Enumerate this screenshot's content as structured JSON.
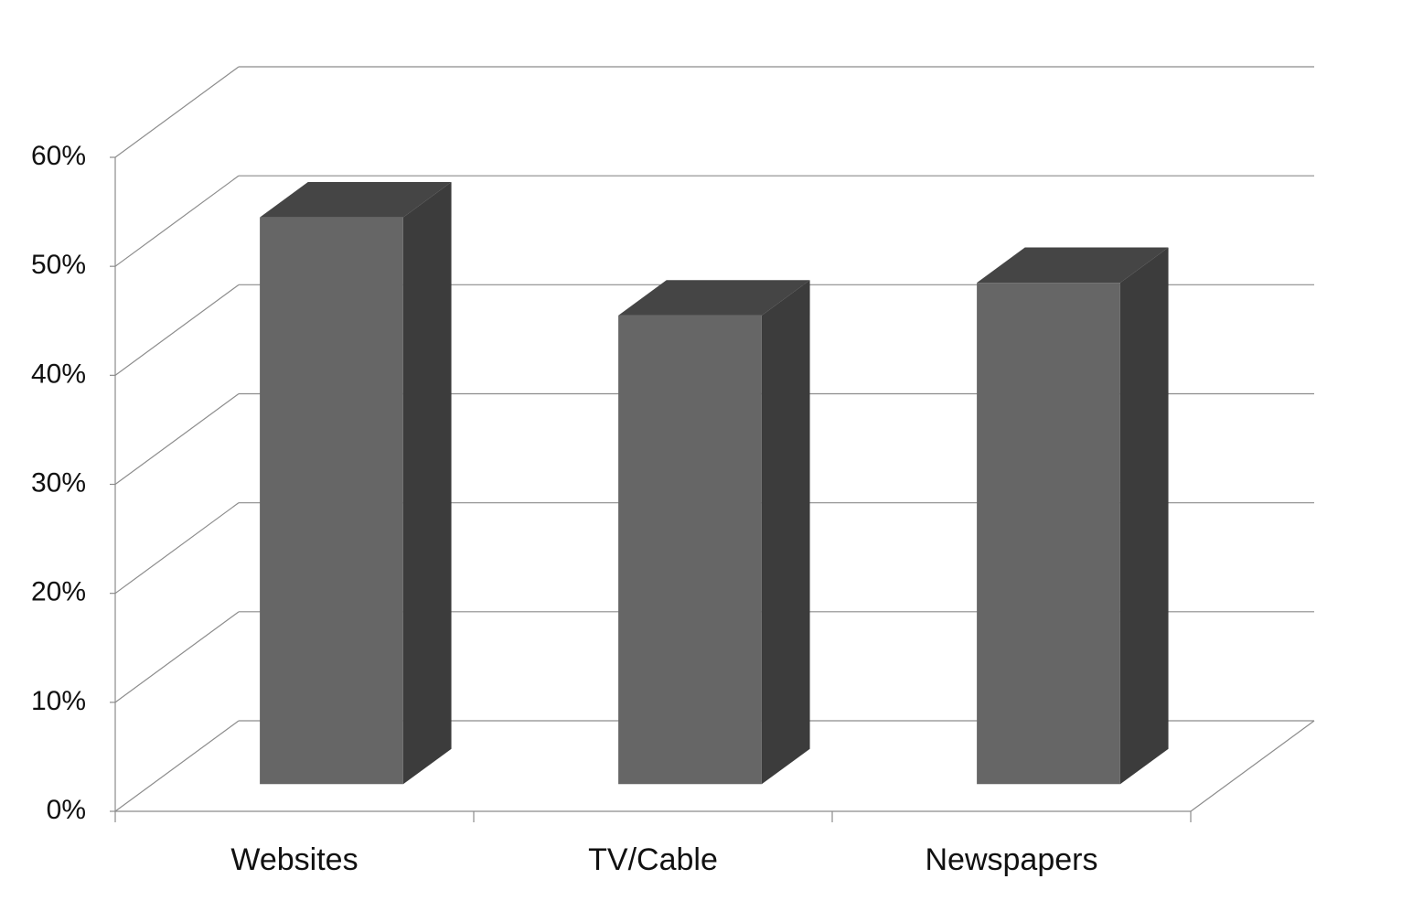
{
  "chart_data": {
    "type": "bar3d",
    "categories": [
      "Websites",
      "TV/Cable",
      "Newspapers"
    ],
    "values": [
      52,
      43,
      46
    ],
    "color": "#666666",
    "ylim": [
      0,
      60
    ],
    "yticks": [
      {
        "value": 0,
        "label": "0%"
      },
      {
        "value": 10,
        "label": "10%"
      },
      {
        "value": 20,
        "label": "20%"
      },
      {
        "value": 30,
        "label": "30%"
      },
      {
        "value": 40,
        "label": "40%"
      },
      {
        "value": 50,
        "label": "50%"
      },
      {
        "value": 60,
        "label": "60%"
      }
    ],
    "grid": true
  }
}
